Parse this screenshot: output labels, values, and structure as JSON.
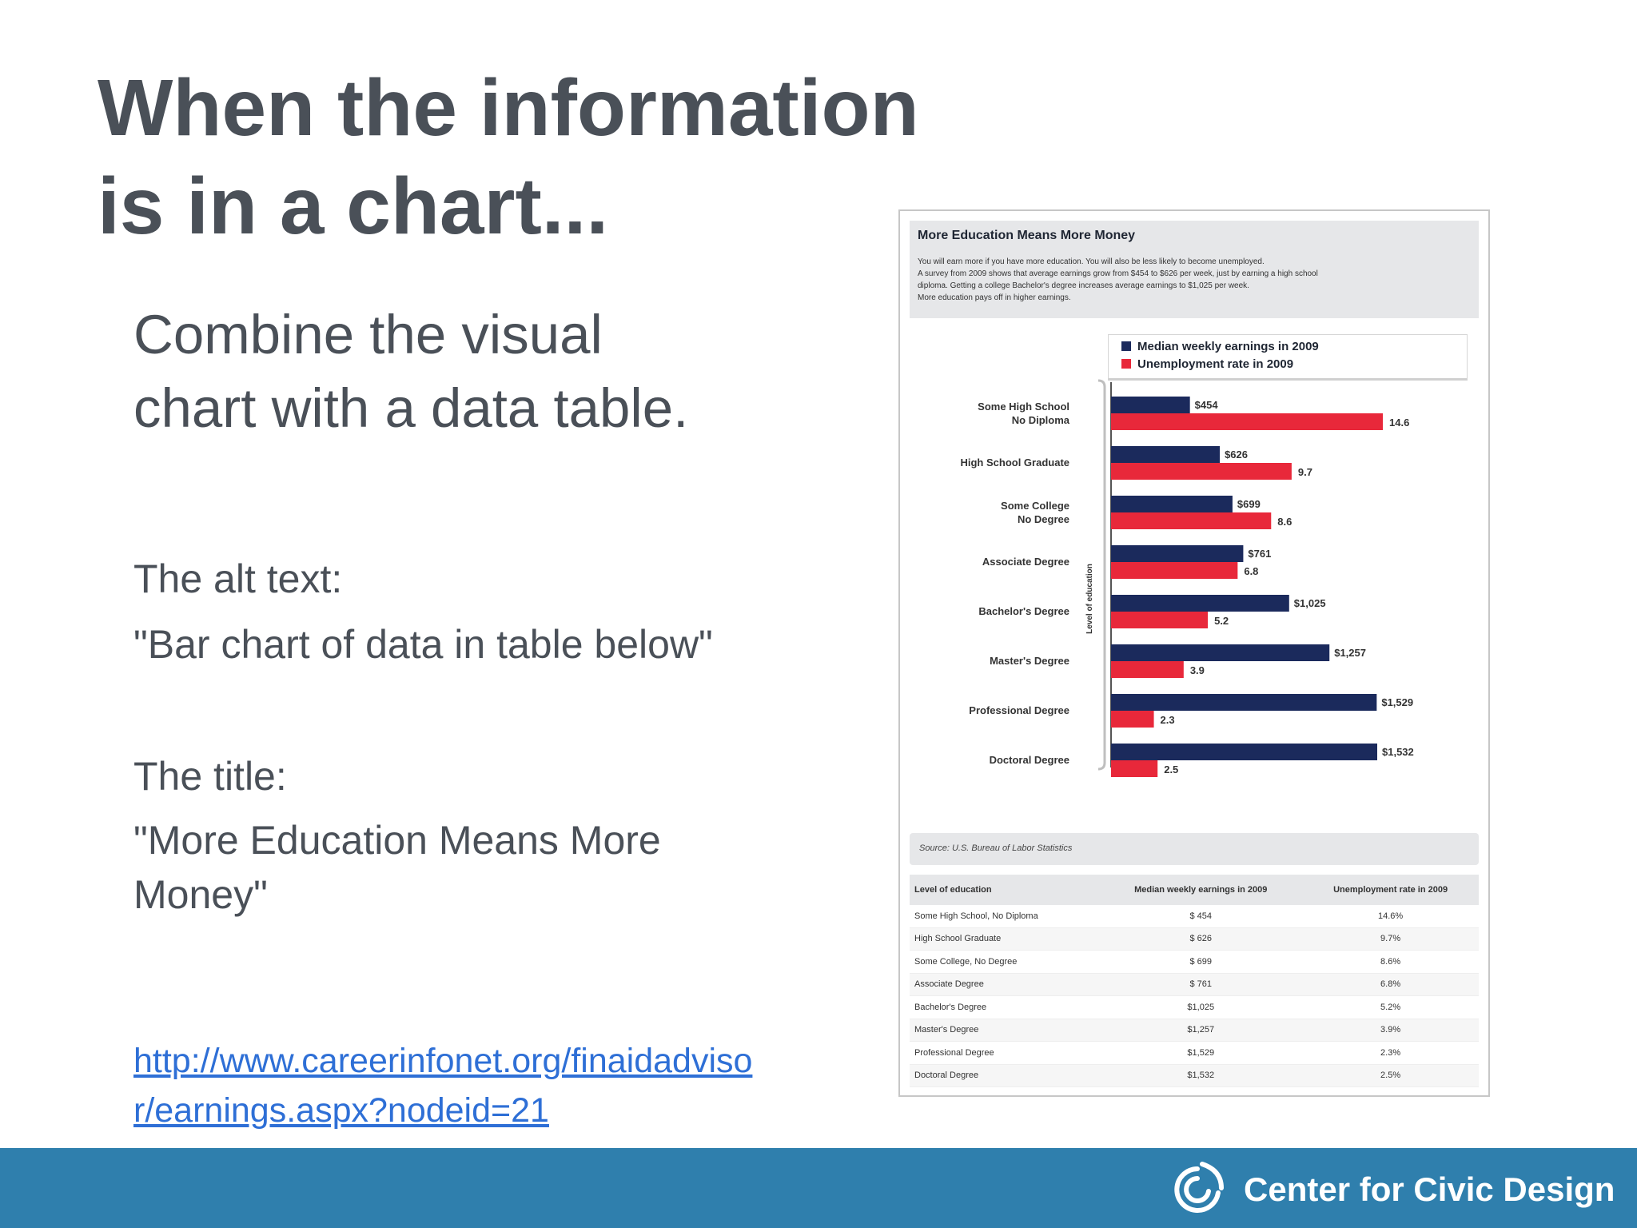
{
  "slide": {
    "title_lines": [
      "When the information",
      "is in a chart..."
    ],
    "combine_lines": [
      "Combine the visual",
      "chart with a data table."
    ],
    "alt_label": "The alt text:",
    "alt_value": "\"Bar chart of data in table below\"",
    "title_label": "The title:",
    "title_value_lines": [
      "\"More Education Means More",
      "Money\""
    ],
    "link_lines": [
      "http://www.careerinfonet.org/finaidadviso",
      "r/earnings.aspx?nodeid=21"
    ]
  },
  "figure": {
    "title": "More Education Means More Money",
    "description_lines": [
      "You will earn more if you have more education. You will also be less likely to become unemployed.",
      "A survey from 2009 shows that average earnings grow from $454 to $626 per week, just by earning a high school",
      "diploma. Getting a college Bachelor's degree increases average earnings to $1,025 per week.",
      "More education pays off in higher earnings."
    ],
    "source": "Source: U.S. Bureau of Labor Statistics",
    "table": {
      "headers": [
        "Level of education",
        "Median weekly earnings in 2009",
        "Unemployment rate in 2009"
      ],
      "rows": [
        [
          "Some High School, No Diploma",
          "$ 454",
          "14.6%"
        ],
        [
          "High School Graduate",
          "$ 626",
          "9.7%"
        ],
        [
          "Some College, No Degree",
          "$ 699",
          "8.6%"
        ],
        [
          "Associate Degree",
          "$ 761",
          "6.8%"
        ],
        [
          "Bachelor's Degree",
          "$1,025",
          "5.2%"
        ],
        [
          "Master's Degree",
          "$1,257",
          "3.9%"
        ],
        [
          "Professional Degree",
          "$1,529",
          "2.3%"
        ],
        [
          "Doctoral Degree",
          "$1,532",
          "2.5%"
        ]
      ]
    }
  },
  "chart_data": {
    "type": "bar",
    "orientation": "horizontal",
    "title": "More Education Means More Money",
    "ylabel": "Level of education",
    "categories": [
      [
        "Some High School",
        "No Diploma"
      ],
      [
        "High School Graduate"
      ],
      [
        "Some College",
        "No Degree"
      ],
      [
        "Associate Degree"
      ],
      [
        "Bachelor's Degree"
      ],
      [
        "Master's Degree"
      ],
      [
        "Professional Degree"
      ],
      [
        "Doctoral Degree"
      ]
    ],
    "series": [
      {
        "name": "Median weekly earnings in 2009",
        "color": "#1b2a5c",
        "values": [
          454,
          626,
          699,
          761,
          1025,
          1257,
          1529,
          1532
        ],
        "labels": [
          "$454",
          "$626",
          "$699",
          "$761",
          "$1,025",
          "$1,257",
          "$1,529",
          "$1,532"
        ]
      },
      {
        "name": "Unemployment rate in 2009",
        "color": "#e8283a",
        "values": [
          14.6,
          9.7,
          8.6,
          6.8,
          5.2,
          3.9,
          2.3,
          2.5
        ],
        "labels": [
          "14.6",
          "9.7",
          "8.6",
          "6.8",
          "5.2",
          "3.9",
          "2.3",
          "2.5"
        ]
      }
    ],
    "legend": "top-right",
    "grid": false
  },
  "footer": {
    "brand": "Center for Civic Design",
    "background": "#2f7fad",
    "logo_icon": "civic-design-logo-icon"
  }
}
